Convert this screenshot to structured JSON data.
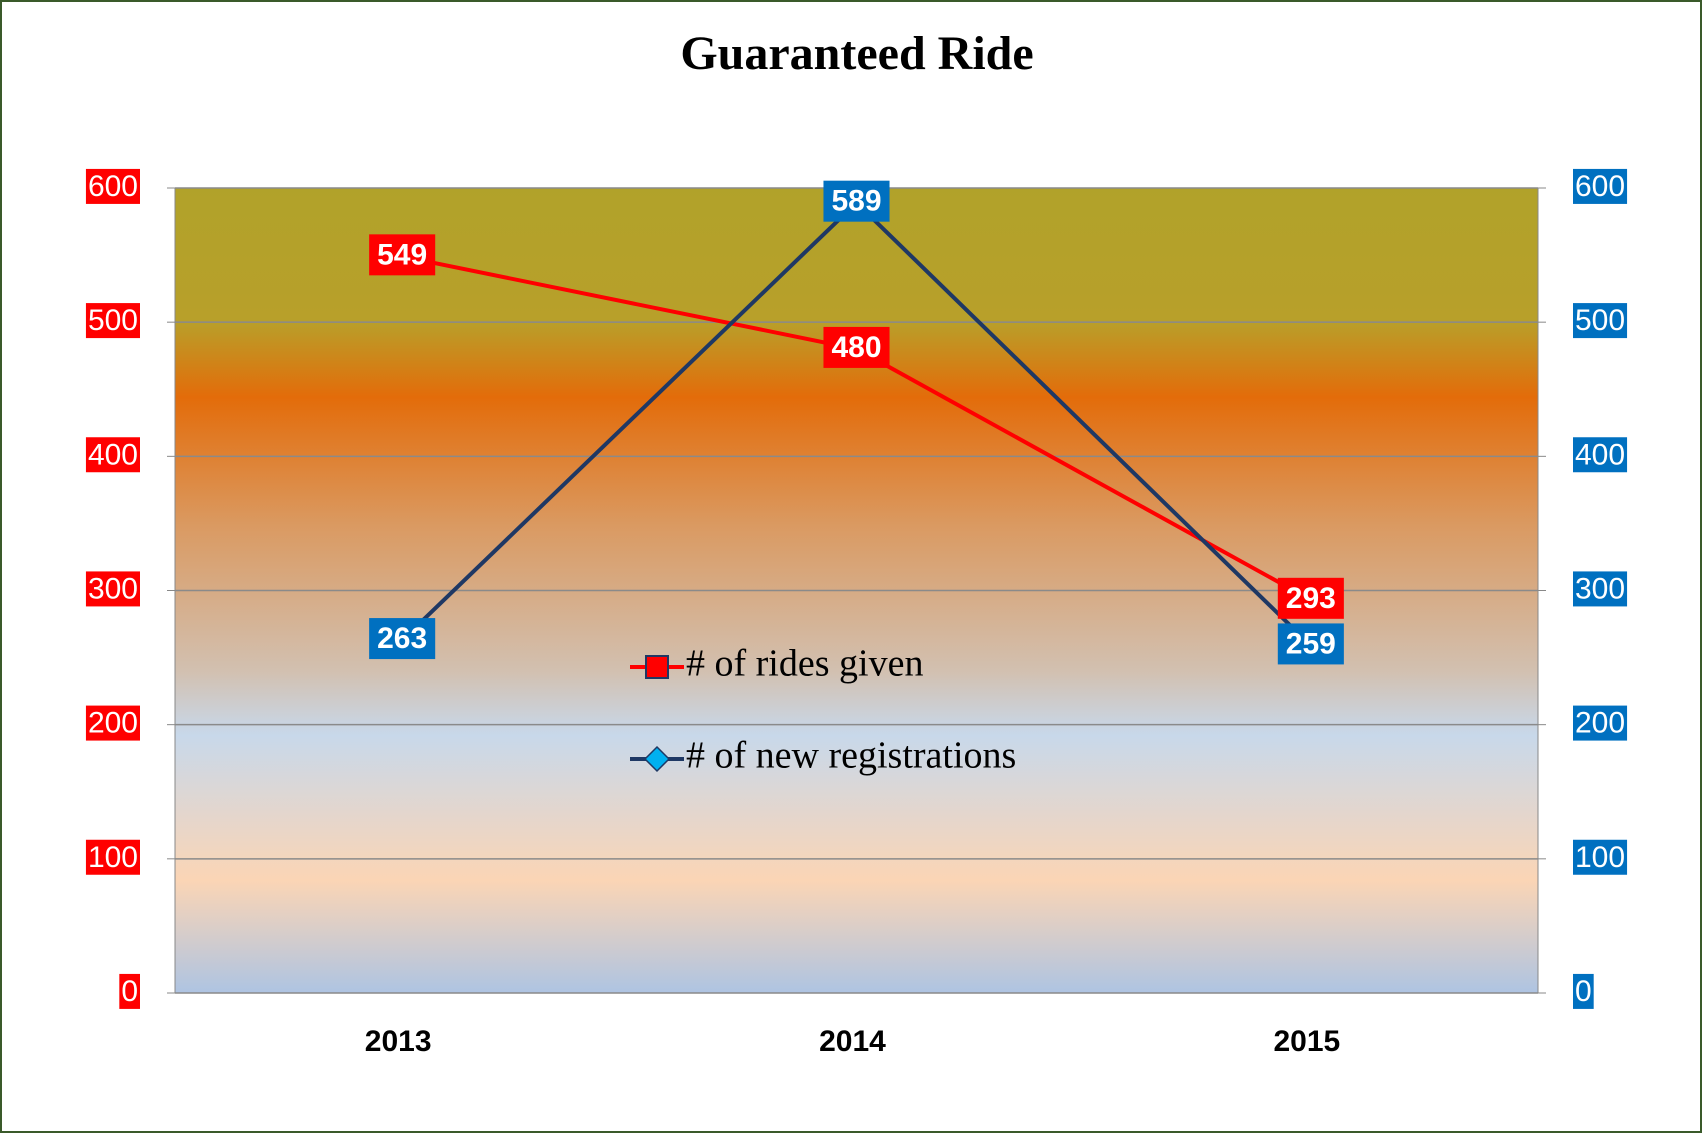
{
  "chart_data": {
    "type": "line",
    "title": "Guaranteed Ride",
    "categories": [
      "2013",
      "2014",
      "2015"
    ],
    "series": [
      {
        "name": "# of rides given",
        "color": "#ff0000",
        "marker_color": "#ff0000",
        "values": [
          549,
          480,
          293
        ]
      },
      {
        "name": "# of new registrations",
        "color": "#1f3864",
        "marker_color": "#00b0f0",
        "values": [
          263,
          589,
          259
        ],
        "axis": "y2"
      }
    ],
    "ylim": [
      0,
      600
    ],
    "yticks": [
      0,
      100,
      200,
      300,
      400,
      500,
      600
    ],
    "ycolor": "#ff0000",
    "y2lim": [
      0,
      600
    ],
    "y2ticks": [
      0,
      100,
      200,
      300,
      400,
      500,
      600
    ],
    "y2color": "#0070c0",
    "grid": true
  }
}
